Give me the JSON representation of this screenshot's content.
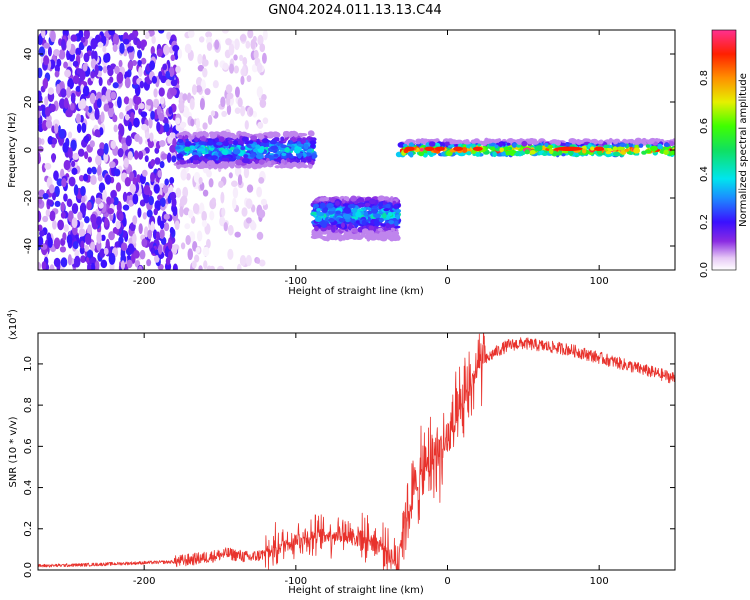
{
  "title": "GN04.2024.011.13.13.C44",
  "colors": {
    "trace": "#e8322c",
    "axis": "#000000"
  },
  "chart_data": [
    {
      "type": "heatmap",
      "name": "spectrogram",
      "xlabel": "Height of straight line (km)",
      "ylabel": "Frequency (Hz)",
      "xlim": [
        -270,
        150
      ],
      "ylim": [
        -50,
        50
      ],
      "xticks": [
        {
          "v": -200,
          "label": "-200"
        },
        {
          "v": -100,
          "label": "-100"
        },
        {
          "v": 0,
          "label": "0"
        },
        {
          "v": 100,
          "label": "100"
        }
      ],
      "yticks": [
        {
          "v": 40,
          "label": "40"
        },
        {
          "v": 20,
          "label": "20"
        },
        {
          "v": 0,
          "label": "0"
        },
        {
          "v": -20,
          "label": "-20"
        },
        {
          "v": -40,
          "label": "-40"
        }
      ],
      "colorbar": {
        "label": "Normalized spectral amplitude",
        "range": [
          0,
          1
        ],
        "ticks": [
          {
            "v": 0.0,
            "label": "0.0"
          },
          {
            "v": 0.2,
            "label": "0.2"
          },
          {
            "v": 0.4,
            "label": "0.4"
          },
          {
            "v": 0.6,
            "label": "0.6"
          },
          {
            "v": 0.8,
            "label": "0.8"
          }
        ]
      },
      "regions": [
        {
          "desc": "scattered noise",
          "x": [
            -270,
            -178
          ],
          "f": [
            -50,
            50
          ],
          "amp": 0.15
        },
        {
          "desc": "sparse noise",
          "x": [
            -178,
            -120
          ],
          "f": [
            -50,
            50
          ],
          "amp": 0.05
        },
        {
          "desc": "band",
          "x": [
            -178,
            -88
          ],
          "f": [
            -7,
            7
          ],
          "center": 0,
          "amp": 0.35
        },
        {
          "desc": "dropped band",
          "x": [
            -88,
            -32
          ],
          "f": [
            -37,
            -20
          ],
          "center": -27,
          "amp": 0.35
        },
        {
          "desc": "narrow tone",
          "x": [
            -32,
            150
          ],
          "f": [
            -2,
            4
          ],
          "center": 0,
          "amp": 0.8
        }
      ]
    },
    {
      "type": "line",
      "name": "snr",
      "xlabel": "Height of straight line (km)",
      "ylabel": "SNR (10 * v/v)",
      "yscale_label": "(x10",
      "yscale_exp": "4",
      "yscale_close": ")",
      "xlim": [
        -270,
        150
      ],
      "ylim": [
        0,
        1.15
      ],
      "xticks": [
        {
          "v": -200,
          "label": "-200"
        },
        {
          "v": -100,
          "label": "-100"
        },
        {
          "v": 0,
          "label": "0"
        },
        {
          "v": 100,
          "label": "100"
        }
      ],
      "yticks": [
        {
          "v": 0.0,
          "label": "0.0"
        },
        {
          "v": 0.2,
          "label": "0.2"
        },
        {
          "v": 0.4,
          "label": "0.4"
        },
        {
          "v": 0.6,
          "label": "0.6"
        },
        {
          "v": 0.8,
          "label": "0.8"
        },
        {
          "v": 1.0,
          "label": "1.0"
        }
      ],
      "series": [
        {
          "x": [
            -270,
            -240,
            -220,
            -200,
            -180,
            -160,
            -145,
            -130,
            -120,
            -110,
            -100,
            -90,
            -80,
            -70,
            -60,
            -50,
            -40,
            -33,
            -30,
            -25,
            -20,
            -15,
            -10,
            -5,
            0,
            5,
            10,
            15,
            20,
            30,
            40,
            50,
            60,
            70,
            80,
            90,
            100,
            110,
            120,
            130,
            140,
            150
          ],
          "y": [
            0.02,
            0.025,
            0.03,
            0.035,
            0.04,
            0.06,
            0.08,
            0.06,
            0.08,
            0.12,
            0.15,
            0.16,
            0.17,
            0.18,
            0.16,
            0.15,
            0.1,
            0.02,
            0.2,
            0.3,
            0.42,
            0.48,
            0.55,
            0.58,
            0.62,
            0.7,
            0.78,
            0.9,
            0.98,
            1.05,
            1.09,
            1.1,
            1.09,
            1.08,
            1.07,
            1.05,
            1.03,
            1.01,
            0.99,
            0.97,
            0.95,
            0.93
          ]
        }
      ]
    }
  ]
}
